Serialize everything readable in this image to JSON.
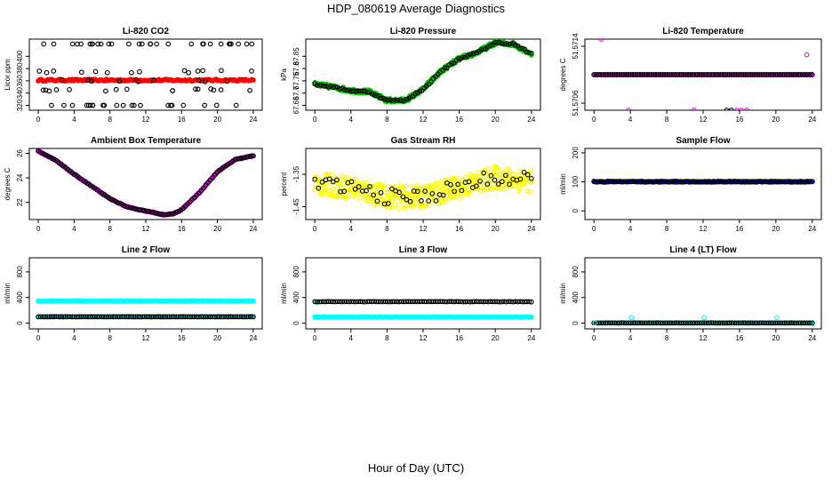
{
  "figure": {
    "title": "HDP_080619  Average Diagnostics",
    "xlabel": "Hour of Day (UTC)"
  },
  "chart_data": [
    {
      "type": "scatter",
      "title": "Li-820 CO2",
      "ylabel": "Licor ppm",
      "xlim": [
        -1,
        25
      ],
      "ylim": [
        312,
        428
      ],
      "xticks": [
        0,
        4,
        8,
        12,
        16,
        20,
        24
      ],
      "yticks": [
        320,
        340,
        360,
        380,
        400
      ],
      "series": [
        {
          "name": "co2_avg",
          "color": "#ff0000",
          "filled": true,
          "pattern": "flat",
          "count": 140,
          "base": 361,
          "amp": 1.5
        },
        {
          "name": "co2_high",
          "color": "#000000",
          "filled": false,
          "pattern": "random",
          "count": 30,
          "values": [
            420
          ],
          "spread": 0
        },
        {
          "name": "co2_mid",
          "color": "#000000",
          "filled": false,
          "pattern": "random",
          "count": 40,
          "values": [
            375,
            345,
            360
          ],
          "spread": 2
        },
        {
          "name": "co2_low",
          "color": "#000000",
          "filled": false,
          "pattern": "random",
          "count": 22,
          "values": [
            320
          ],
          "spread": 0
        }
      ]
    },
    {
      "type": "scatter",
      "title": "Li-820 Pressure",
      "ylabel": "kPa",
      "xlim": [
        -1,
        25
      ],
      "ylim": [
        67.63,
        67.92
      ],
      "xticks": [
        0,
        4,
        8,
        12,
        16,
        20,
        24
      ],
      "yticks": [
        67.65,
        67.7,
        67.75,
        67.8,
        67.85
      ],
      "series": [
        {
          "name": "pressure_raw",
          "color": "#00cc00",
          "filled": true,
          "pattern": "curve",
          "count": 260,
          "noise": 0.008,
          "curve": [
            [
              0,
              67.735
            ],
            [
              2,
              67.725
            ],
            [
              4,
              67.71
            ],
            [
              6,
              67.705
            ],
            [
              8,
              67.67
            ],
            [
              10,
              67.67
            ],
            [
              12,
              67.715
            ],
            [
              14,
              67.79
            ],
            [
              16,
              67.84
            ],
            [
              18,
              67.865
            ],
            [
              20,
              67.905
            ],
            [
              22,
              67.9
            ],
            [
              24,
              67.86
            ]
          ]
        },
        {
          "name": "pressure_avg",
          "color": "#000000",
          "filled": false,
          "pattern": "curve",
          "count": 96,
          "noise": 0.003,
          "curve": [
            [
              0,
              67.735
            ],
            [
              2,
              67.725
            ],
            [
              4,
              67.71
            ],
            [
              6,
              67.705
            ],
            [
              8,
              67.67
            ],
            [
              10,
              67.67
            ],
            [
              12,
              67.715
            ],
            [
              14,
              67.79
            ],
            [
              16,
              67.84
            ],
            [
              18,
              67.865
            ],
            [
              20,
              67.905
            ],
            [
              22,
              67.9
            ],
            [
              24,
              67.86
            ]
          ]
        }
      ]
    },
    {
      "type": "scatter",
      "title": "Li-820 Temperature",
      "ylabel": "degrees C",
      "xlim": [
        -1,
        25
      ],
      "ylim": [
        51.5705,
        51.5715
      ],
      "xticks": [
        0,
        4,
        8,
        12,
        16,
        20,
        24
      ],
      "yticks": [
        51.5706,
        51.5714
      ],
      "yticklabels": [
        "51.5706",
        "51.5714"
      ],
      "series": [
        {
          "name": "temp_raw",
          "color": "#ff00ff",
          "filled": true,
          "pattern": "flat",
          "count": 120,
          "base": 51.571,
          "amp": 0
        },
        {
          "name": "temp_avg",
          "color": "#000000",
          "filled": false,
          "pattern": "flat",
          "count": 96,
          "base": 51.571,
          "amp": 0
        },
        {
          "name": "temp_outliers",
          "color": "#ff00ff",
          "filled": false,
          "pattern": "points",
          "points": [
            [
              0.8,
              51.5715
            ],
            [
              3.8,
              51.5705
            ],
            [
              11,
              51.5705
            ],
            [
              15.7,
              51.5705
            ],
            [
              16.2,
              51.5705
            ],
            [
              16.8,
              51.5705
            ],
            [
              23.4,
              51.57128
            ]
          ]
        },
        {
          "name": "temp_outliers_black",
          "color": "#000000",
          "filled": false,
          "pattern": "points",
          "points": [
            [
              14.6,
              51.5705
            ],
            [
              15.1,
              51.5705
            ]
          ]
        }
      ]
    },
    {
      "type": "scatter",
      "title": "Ambient Box Temperature",
      "ylabel": "degrees C",
      "xlim": [
        -1,
        25
      ],
      "ylim": [
        20.6,
        26.4
      ],
      "xticks": [
        0,
        4,
        8,
        12,
        16,
        20,
        24
      ],
      "yticks": [
        22,
        24,
        26
      ],
      "series": [
        {
          "name": "ambient_raw",
          "color": "#cc00cc",
          "filled": true,
          "pattern": "curve",
          "count": 200,
          "noise": 0.04,
          "curve": [
            [
              0,
              26.2
            ],
            [
              2,
              25.4
            ],
            [
              4,
              24.3
            ],
            [
              6,
              23.3
            ],
            [
              8,
              22.3
            ],
            [
              10,
              21.6
            ],
            [
              12,
              21.3
            ],
            [
              14,
              21.0
            ],
            [
              15,
              21.05
            ],
            [
              16,
              21.4
            ],
            [
              18,
              22.8
            ],
            [
              20,
              24.5
            ],
            [
              22,
              25.5
            ],
            [
              24,
              25.8
            ]
          ]
        },
        {
          "name": "ambient_avg",
          "color": "#000000",
          "filled": false,
          "pattern": "curve",
          "count": 96,
          "noise": 0.01,
          "curve": [
            [
              0,
              26.2
            ],
            [
              2,
              25.4
            ],
            [
              4,
              24.3
            ],
            [
              6,
              23.3
            ],
            [
              8,
              22.3
            ],
            [
              10,
              21.6
            ],
            [
              12,
              21.3
            ],
            [
              14,
              21.0
            ],
            [
              15,
              21.05
            ],
            [
              16,
              21.4
            ],
            [
              18,
              22.8
            ],
            [
              20,
              24.5
            ],
            [
              22,
              25.5
            ],
            [
              24,
              25.8
            ]
          ]
        }
      ]
    },
    {
      "type": "scatter",
      "title": "Gas Stream RH",
      "ylabel": "percent",
      "xlim": [
        -1,
        25
      ],
      "ylim": [
        -1.49,
        -1.27
      ],
      "xticks": [
        0,
        4,
        8,
        12,
        16,
        20,
        24
      ],
      "yticks": [
        -1.45,
        -1.35
      ],
      "series": [
        {
          "name": "rh_raw",
          "color": "#ffff00",
          "filled": false,
          "pattern": "curve",
          "count": 430,
          "noise": 0.035,
          "curve": [
            [
              0,
              -1.38
            ],
            [
              4,
              -1.39
            ],
            [
              8,
              -1.42
            ],
            [
              12,
              -1.42
            ],
            [
              16,
              -1.39
            ],
            [
              20,
              -1.36
            ],
            [
              24,
              -1.37
            ]
          ]
        },
        {
          "name": "rh_avg",
          "color": "#000000",
          "filled": false,
          "pattern": "curve",
          "count": 60,
          "noise": 0.025,
          "curve": [
            [
              0,
              -1.38
            ],
            [
              4,
              -1.39
            ],
            [
              8,
              -1.42
            ],
            [
              12,
              -1.42
            ],
            [
              16,
              -1.39
            ],
            [
              20,
              -1.36
            ],
            [
              24,
              -1.37
            ]
          ]
        }
      ]
    },
    {
      "type": "scatter",
      "title": "Sample Flow",
      "ylabel": "ml/min",
      "xlim": [
        -1,
        25
      ],
      "ylim": [
        -30,
        215
      ],
      "xticks": [
        0,
        4,
        8,
        12,
        16,
        20,
        24
      ],
      "yticks": [
        0,
        100,
        200
      ],
      "series": [
        {
          "name": "flow_raw",
          "color": "#0000ff",
          "filled": true,
          "pattern": "flat",
          "count": 170,
          "base": 100,
          "amp": 1.2
        },
        {
          "name": "flow_avg",
          "color": "#000000",
          "filled": false,
          "pattern": "flat",
          "count": 96,
          "base": 101,
          "amp": 1
        }
      ]
    },
    {
      "type": "scatter",
      "title": "Line 2 Flow",
      "ylabel": "ml/min",
      "xlim": [
        -1,
        25
      ],
      "ylim": [
        -90,
        1020
      ],
      "xticks": [
        0,
        4,
        8,
        12,
        16,
        20,
        24
      ],
      "yticks": [
        0,
        400,
        800
      ],
      "series": [
        {
          "name": "l2_high",
          "color": "#00ffff",
          "filled": true,
          "pattern": "flat",
          "count": 160,
          "base": 345,
          "amp": 4
        },
        {
          "name": "l2_low_raw",
          "color": "#00ffff",
          "filled": true,
          "pattern": "flat",
          "count": 70,
          "base": 95,
          "amp": 3
        },
        {
          "name": "l2_low_avg",
          "color": "#000000",
          "filled": false,
          "pattern": "flat",
          "count": 96,
          "base": 100,
          "amp": 2
        }
      ]
    },
    {
      "type": "scatter",
      "title": "Line 3 Flow",
      "ylabel": "ml/min",
      "xlim": [
        -1,
        25
      ],
      "ylim": [
        -90,
        1020
      ],
      "xticks": [
        0,
        4,
        8,
        12,
        16,
        20,
        24
      ],
      "yticks": [
        0,
        400,
        800
      ],
      "series": [
        {
          "name": "l3_low",
          "color": "#00ffff",
          "filled": true,
          "pattern": "flat",
          "count": 160,
          "base": 95,
          "amp": 4
        },
        {
          "name": "l3_high_raw",
          "color": "#00ffff",
          "filled": true,
          "pattern": "points",
          "points": [
            [
              0.1,
              330
            ],
            [
              0.3,
              330
            ]
          ]
        },
        {
          "name": "l3_high_avg",
          "color": "#000000",
          "filled": false,
          "pattern": "flat",
          "count": 96,
          "base": 335,
          "amp": 3
        }
      ]
    },
    {
      "type": "scatter",
      "title": "Line 4 (LT) Flow",
      "ylabel": "ml/min",
      "xlim": [
        -1,
        25
      ],
      "ylim": [
        -90,
        1020
      ],
      "xticks": [
        0,
        4,
        8,
        12,
        16,
        20,
        24
      ],
      "yticks": [
        0,
        400,
        800
      ],
      "series": [
        {
          "name": "l4_raw",
          "color": "#00ffff",
          "filled": true,
          "pattern": "flat",
          "count": 60,
          "base": 2,
          "amp": 1
        },
        {
          "name": "l4_avg",
          "color": "#000000",
          "filled": false,
          "pattern": "flat",
          "count": 96,
          "base": 3,
          "amp": 1
        },
        {
          "name": "l4_spikes",
          "color": "#00ffff",
          "filled": false,
          "pattern": "points",
          "points": [
            [
              0.1,
              5
            ],
            [
              4.1,
              85
            ],
            [
              12.1,
              85
            ],
            [
              20.1,
              85
            ]
          ]
        }
      ]
    }
  ]
}
